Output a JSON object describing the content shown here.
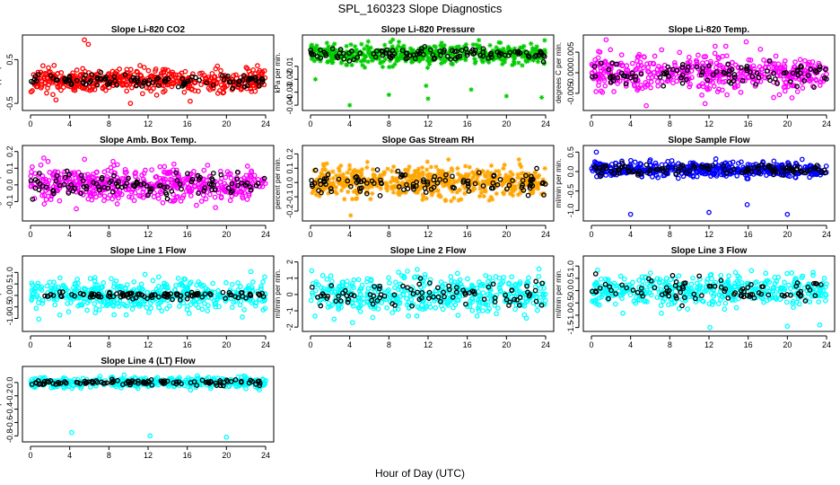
{
  "figure": {
    "title": "SPL_160323  Slope Diagnostics",
    "xlabel": "Hour of Day (UTC)"
  },
  "chart_data": [
    {
      "type": "scatter",
      "title": "Slope Li-820 CO2",
      "ylabel": "Licor ppm per min.",
      "xlim": [
        0,
        24
      ],
      "xticks": [
        0,
        4,
        8,
        12,
        16,
        20,
        24
      ],
      "ylim": [
        -0.6,
        1.0
      ],
      "yticks": [
        -0.5,
        0.5
      ],
      "ytick_labels": [
        "-0.5",
        "0.5"
      ],
      "series": [
        {
          "color": "#ff0000",
          "n": 500,
          "center": 0.02,
          "spread": 0.17,
          "glyph": "circle",
          "outliers": [
            [
              5.5,
              0.95
            ],
            [
              5.9,
              0.85
            ],
            [
              10.2,
              -0.5
            ],
            [
              16.3,
              -0.45
            ],
            [
              2.6,
              -0.42
            ]
          ]
        },
        {
          "color": "#000000",
          "n": 110,
          "center": 0.02,
          "spread": 0.11,
          "glyph": "circle",
          "outliers": []
        }
      ]
    },
    {
      "type": "scatter",
      "title": "Slope Li-820 Pressure",
      "ylabel": "kPa per min.",
      "xlim": [
        0,
        24
      ],
      "xticks": [
        0,
        4,
        8,
        12,
        16,
        20,
        24
      ],
      "ylim": [
        -0.042,
        0.012
      ],
      "yticks": [
        -0.04,
        -0.03,
        -0.02,
        -0.01
      ],
      "ytick_labels": [
        "-0.04",
        "-0.03",
        "-0.02",
        "-0.01"
      ],
      "series": [
        {
          "color": "#00cc00",
          "n": 500,
          "center": -0.001,
          "spread": 0.005,
          "glyph": "star",
          "outliers": [
            [
              4.0,
              -0.04
            ],
            [
              8.0,
              -0.032
            ],
            [
              12.0,
              -0.035
            ],
            [
              16.4,
              -0.028
            ],
            [
              20.0,
              -0.033
            ],
            [
              23.6,
              -0.034
            ],
            [
              0.5,
              -0.02
            ],
            [
              11.8,
              -0.025
            ]
          ]
        },
        {
          "color": "#000000",
          "n": 110,
          "center": 0.0,
          "spread": 0.003,
          "glyph": "circle",
          "outliers": []
        }
      ]
    },
    {
      "type": "scatter",
      "title": "Slope Li-820 Temp.",
      "ylabel": "degrees C per min.",
      "xlim": [
        0,
        24
      ],
      "xticks": [
        0,
        4,
        8,
        12,
        16,
        20,
        24
      ],
      "ylim": [
        -0.0085,
        0.0085
      ],
      "yticks": [
        -0.005,
        0.0,
        0.005
      ],
      "ytick_labels": [
        "-0.005",
        "0.000",
        "0.005"
      ],
      "series": [
        {
          "color": "#ff00ff",
          "n": 500,
          "center": 0.0,
          "spread": 0.0028,
          "glyph": "circle",
          "outliers": [
            [
              1.5,
              0.008
            ],
            [
              5.6,
              -0.008
            ],
            [
              15.8,
              0.0075
            ],
            [
              11.6,
              -0.0075
            ]
          ]
        },
        {
          "color": "#000000",
          "n": 100,
          "center": 0.0,
          "spread": 0.002,
          "glyph": "circle",
          "outliers": []
        }
      ]
    },
    {
      "type": "scatter",
      "title": "Slope Amb. Box Temp.",
      "ylabel": "degrees C per min.",
      "xlim": [
        0,
        24
      ],
      "xticks": [
        0,
        4,
        8,
        12,
        16,
        20,
        24
      ],
      "ylim": [
        -0.2,
        0.22
      ],
      "yticks": [
        -0.1,
        0.0,
        0.1,
        0.2
      ],
      "ytick_labels": [
        "-0.1",
        "0.0",
        "0.1",
        "0.2"
      ],
      "series": [
        {
          "color": "#ff00ff",
          "n": 520,
          "center": 0.0,
          "spread": 0.07,
          "glyph": "circle",
          "outliers": []
        },
        {
          "color": "#000000",
          "n": 110,
          "center": 0.0,
          "spread": 0.05,
          "glyph": "circle",
          "outliers": []
        }
      ]
    },
    {
      "type": "scatter",
      "title": "Slope Gas Stream RH",
      "ylabel": "percent per min.",
      "xlim": [
        0,
        24
      ],
      "xticks": [
        0,
        4,
        8,
        12,
        16,
        20,
        24
      ],
      "ylim": [
        -0.25,
        0.24
      ],
      "yticks": [
        -0.2,
        -0.1,
        0.0,
        0.1,
        0.2
      ],
      "ytick_labels": [
        "-0.2",
        "-0.1",
        "0.0",
        "0.1",
        "0.2"
      ],
      "series": [
        {
          "color": "#ffa500",
          "n": 560,
          "center": 0.0,
          "spread": 0.07,
          "glyph": "star",
          "outliers": [
            [
              4.1,
              -0.23
            ]
          ]
        },
        {
          "color": "#000000",
          "n": 110,
          "center": 0.0,
          "spread": 0.05,
          "glyph": "circle",
          "outliers": []
        }
      ]
    },
    {
      "type": "scatter",
      "title": "Slope Sample Flow",
      "ylabel": "ml/min per min.",
      "xlim": [
        0,
        24
      ],
      "xticks": [
        0,
        4,
        8,
        12,
        16,
        20,
        24
      ],
      "ylim": [
        -1.2,
        0.6
      ],
      "yticks": [
        -1.0,
        -0.5,
        0.0,
        0.5
      ],
      "ytick_labels": [
        "-1.0",
        "-0.5",
        "0.0",
        "0.5"
      ],
      "series": [
        {
          "color": "#0000ff",
          "n": 520,
          "center": 0.05,
          "spread": 0.12,
          "glyph": "circle",
          "outliers": [
            [
              0.5,
              0.5
            ],
            [
              4.0,
              -1.1
            ],
            [
              12.0,
              -1.05
            ],
            [
              15.9,
              -0.85
            ],
            [
              20.0,
              -1.1
            ]
          ]
        },
        {
          "color": "#000000",
          "n": 110,
          "center": 0.05,
          "spread": 0.1,
          "glyph": "circle",
          "outliers": []
        }
      ]
    },
    {
      "type": "scatter",
      "title": "Slope Line 1 Flow",
      "ylabel": "ml/min per min.",
      "xlim": [
        0,
        24
      ],
      "xticks": [
        0,
        4,
        8,
        12,
        16,
        20,
        24
      ],
      "ylim": [
        -1.45,
        1.6
      ],
      "yticks": [
        -1.0,
        -0.5,
        0.0,
        0.5,
        1.0
      ],
      "ytick_labels": [
        "-1.0",
        "-0.5",
        "0.0",
        "0.5",
        "1.0"
      ],
      "series": [
        {
          "color": "#00ffff",
          "n": 460,
          "center": 0.0,
          "spread": 0.45,
          "glyph": "circle",
          "outliers": []
        },
        {
          "color": "#000000",
          "n": 110,
          "center": 0.0,
          "spread": 0.1,
          "glyph": "circle",
          "outliers": []
        }
      ]
    },
    {
      "type": "scatter",
      "title": "Slope Line 2 Flow",
      "ylabel": "ml/min per min.",
      "xlim": [
        0,
        24
      ],
      "xticks": [
        0,
        4,
        8,
        12,
        16,
        20,
        24
      ],
      "ylim": [
        -2.1,
        2.2
      ],
      "yticks": [
        -2,
        -1,
        0,
        1,
        2
      ],
      "ytick_labels": [
        "-2",
        "-1",
        "0",
        "1",
        "2"
      ],
      "series": [
        {
          "color": "#00ffff",
          "n": 460,
          "center": 0.0,
          "spread": 0.75,
          "glyph": "circle",
          "outliers": []
        },
        {
          "color": "#000000",
          "n": 90,
          "center": 0.0,
          "spread": 0.55,
          "glyph": "circle",
          "outliers": []
        }
      ]
    },
    {
      "type": "scatter",
      "title": "Slope Line 3 Flow",
      "ylabel": "ml/min per min.",
      "xlim": [
        0,
        24
      ],
      "xticks": [
        0,
        4,
        8,
        12,
        16,
        20,
        24
      ],
      "ylim": [
        -1.55,
        1.3
      ],
      "yticks": [
        -1.5,
        -1.0,
        -0.5,
        0.0,
        0.5,
        1.0
      ],
      "ytick_labels": [
        "-1.5",
        "-1.0",
        "-0.5",
        "0.0",
        "0.5",
        "1.0"
      ],
      "series": [
        {
          "color": "#00ffff",
          "n": 440,
          "center": 0.0,
          "spread": 0.4,
          "glyph": "circle",
          "outliers": [
            [
              12.1,
              -1.5
            ],
            [
              20.0,
              -1.45
            ],
            [
              23.3,
              -1.4
            ]
          ]
        },
        {
          "color": "#000000",
          "n": 90,
          "center": 0.0,
          "spread": 0.35,
          "glyph": "circle",
          "outliers": []
        }
      ]
    },
    {
      "type": "scatter",
      "title": "Slope Line 4 (LT) Flow",
      "ylabel": "ml/min per min.",
      "xlim": [
        0,
        24
      ],
      "xticks": [
        0,
        4,
        8,
        12,
        16,
        20,
        24
      ],
      "ylim": [
        -0.85,
        0.2
      ],
      "yticks": [
        -0.8,
        -0.6,
        -0.4,
        -0.2,
        0.0
      ],
      "ytick_labels": [
        "-0.8",
        "-0.6",
        "-0.4",
        "-0.2",
        "0.0"
      ],
      "series": [
        {
          "color": "#00ffff",
          "n": 460,
          "center": 0.0,
          "spread": 0.05,
          "glyph": "circle",
          "outliers": [
            [
              4.2,
              -0.75
            ],
            [
              12.2,
              -0.8
            ],
            [
              20.0,
              -0.82
            ]
          ]
        },
        {
          "color": "#000000",
          "n": 110,
          "center": 0.0,
          "spread": 0.03,
          "glyph": "circle",
          "outliers": []
        }
      ]
    }
  ]
}
